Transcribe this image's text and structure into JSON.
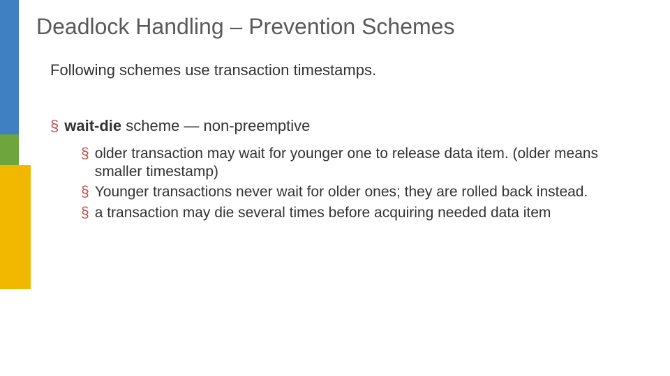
{
  "decor_bars": {
    "blue": "#3e80c2",
    "green": "#6fa53d",
    "yellow": "#f2b800"
  },
  "colors": {
    "title": "#595959",
    "body": "#333333",
    "bullet": "#c0504d"
  },
  "typography": {
    "title_fontsize": 32,
    "body_fontsize": 22,
    "sub_fontsize": 21
  },
  "title": "Deadlock Handling – Prevention Schemes",
  "intro": "Following schemes use transaction timestamps.",
  "main_bullet": "§",
  "main": {
    "bold": "wait-die",
    "rest": " scheme — non-preemptive"
  },
  "sub_bullet": "§",
  "subs": [
    "older transaction may wait for younger one to release data item. (older means smaller timestamp)",
    "Younger transactions never wait for older ones; they are rolled back instead.",
    "a transaction may die several times before acquiring needed data item"
  ]
}
